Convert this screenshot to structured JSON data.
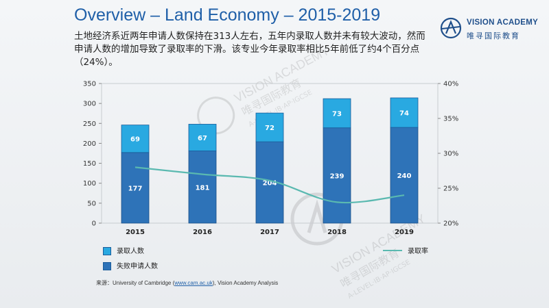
{
  "title": "Overview – Land Economy – 2015-2019",
  "description": "土地经济系近两年申请人数保持在313人左右，五年内录取人数并未有较大波动，然而申请人数的增加导致了录取率的下滑。该专业今年录取率相比5年前低了约4个百分点 （24%）。",
  "logo": {
    "name": "VISION ACADEMY",
    "cn": "唯寻国际教育",
    "icon": "vision-academy-logo-icon"
  },
  "watermark": {
    "name": "VISION ACADEMY",
    "cn": "唯寻国际教育",
    "sub": "A-LEVEL·IB·AP·IGCSE"
  },
  "legend": {
    "offers": "录取人数",
    "unsuccessful": "失败申请人数",
    "rate": "录取率"
  },
  "source": {
    "prefix": "来源：",
    "org": "University of Cambridge (",
    "url": "www.cam.ac.uk",
    "suffix": "), Vision Academy Analysis"
  },
  "colors": {
    "offers": "#29a9e1",
    "unsuccessful": "#2e73b8",
    "rate": "#5ab9b0",
    "title": "#1f5fa8"
  },
  "chart_data": {
    "type": "bar",
    "stacked": true,
    "categories": [
      "2015",
      "2016",
      "2017",
      "2018",
      "2019"
    ],
    "series": [
      {
        "name": "失败申请人数",
        "values": [
          177,
          181,
          204,
          239,
          240
        ]
      },
      {
        "name": "录取人数",
        "values": [
          69,
          67,
          72,
          73,
          74
        ]
      }
    ],
    "line_series": {
      "name": "录取率",
      "axis": "right",
      "values": [
        28.0,
        27.0,
        26.1,
        23.0,
        24.0
      ]
    },
    "ylim": [
      0,
      350
    ],
    "yticks": [
      0,
      50,
      100,
      150,
      200,
      250,
      300,
      350
    ],
    "y2lim": [
      20,
      40
    ],
    "y2ticks": [
      "20%",
      "25%",
      "30%",
      "35%",
      "40%"
    ],
    "grid": false,
    "legend_position": "bottom"
  }
}
